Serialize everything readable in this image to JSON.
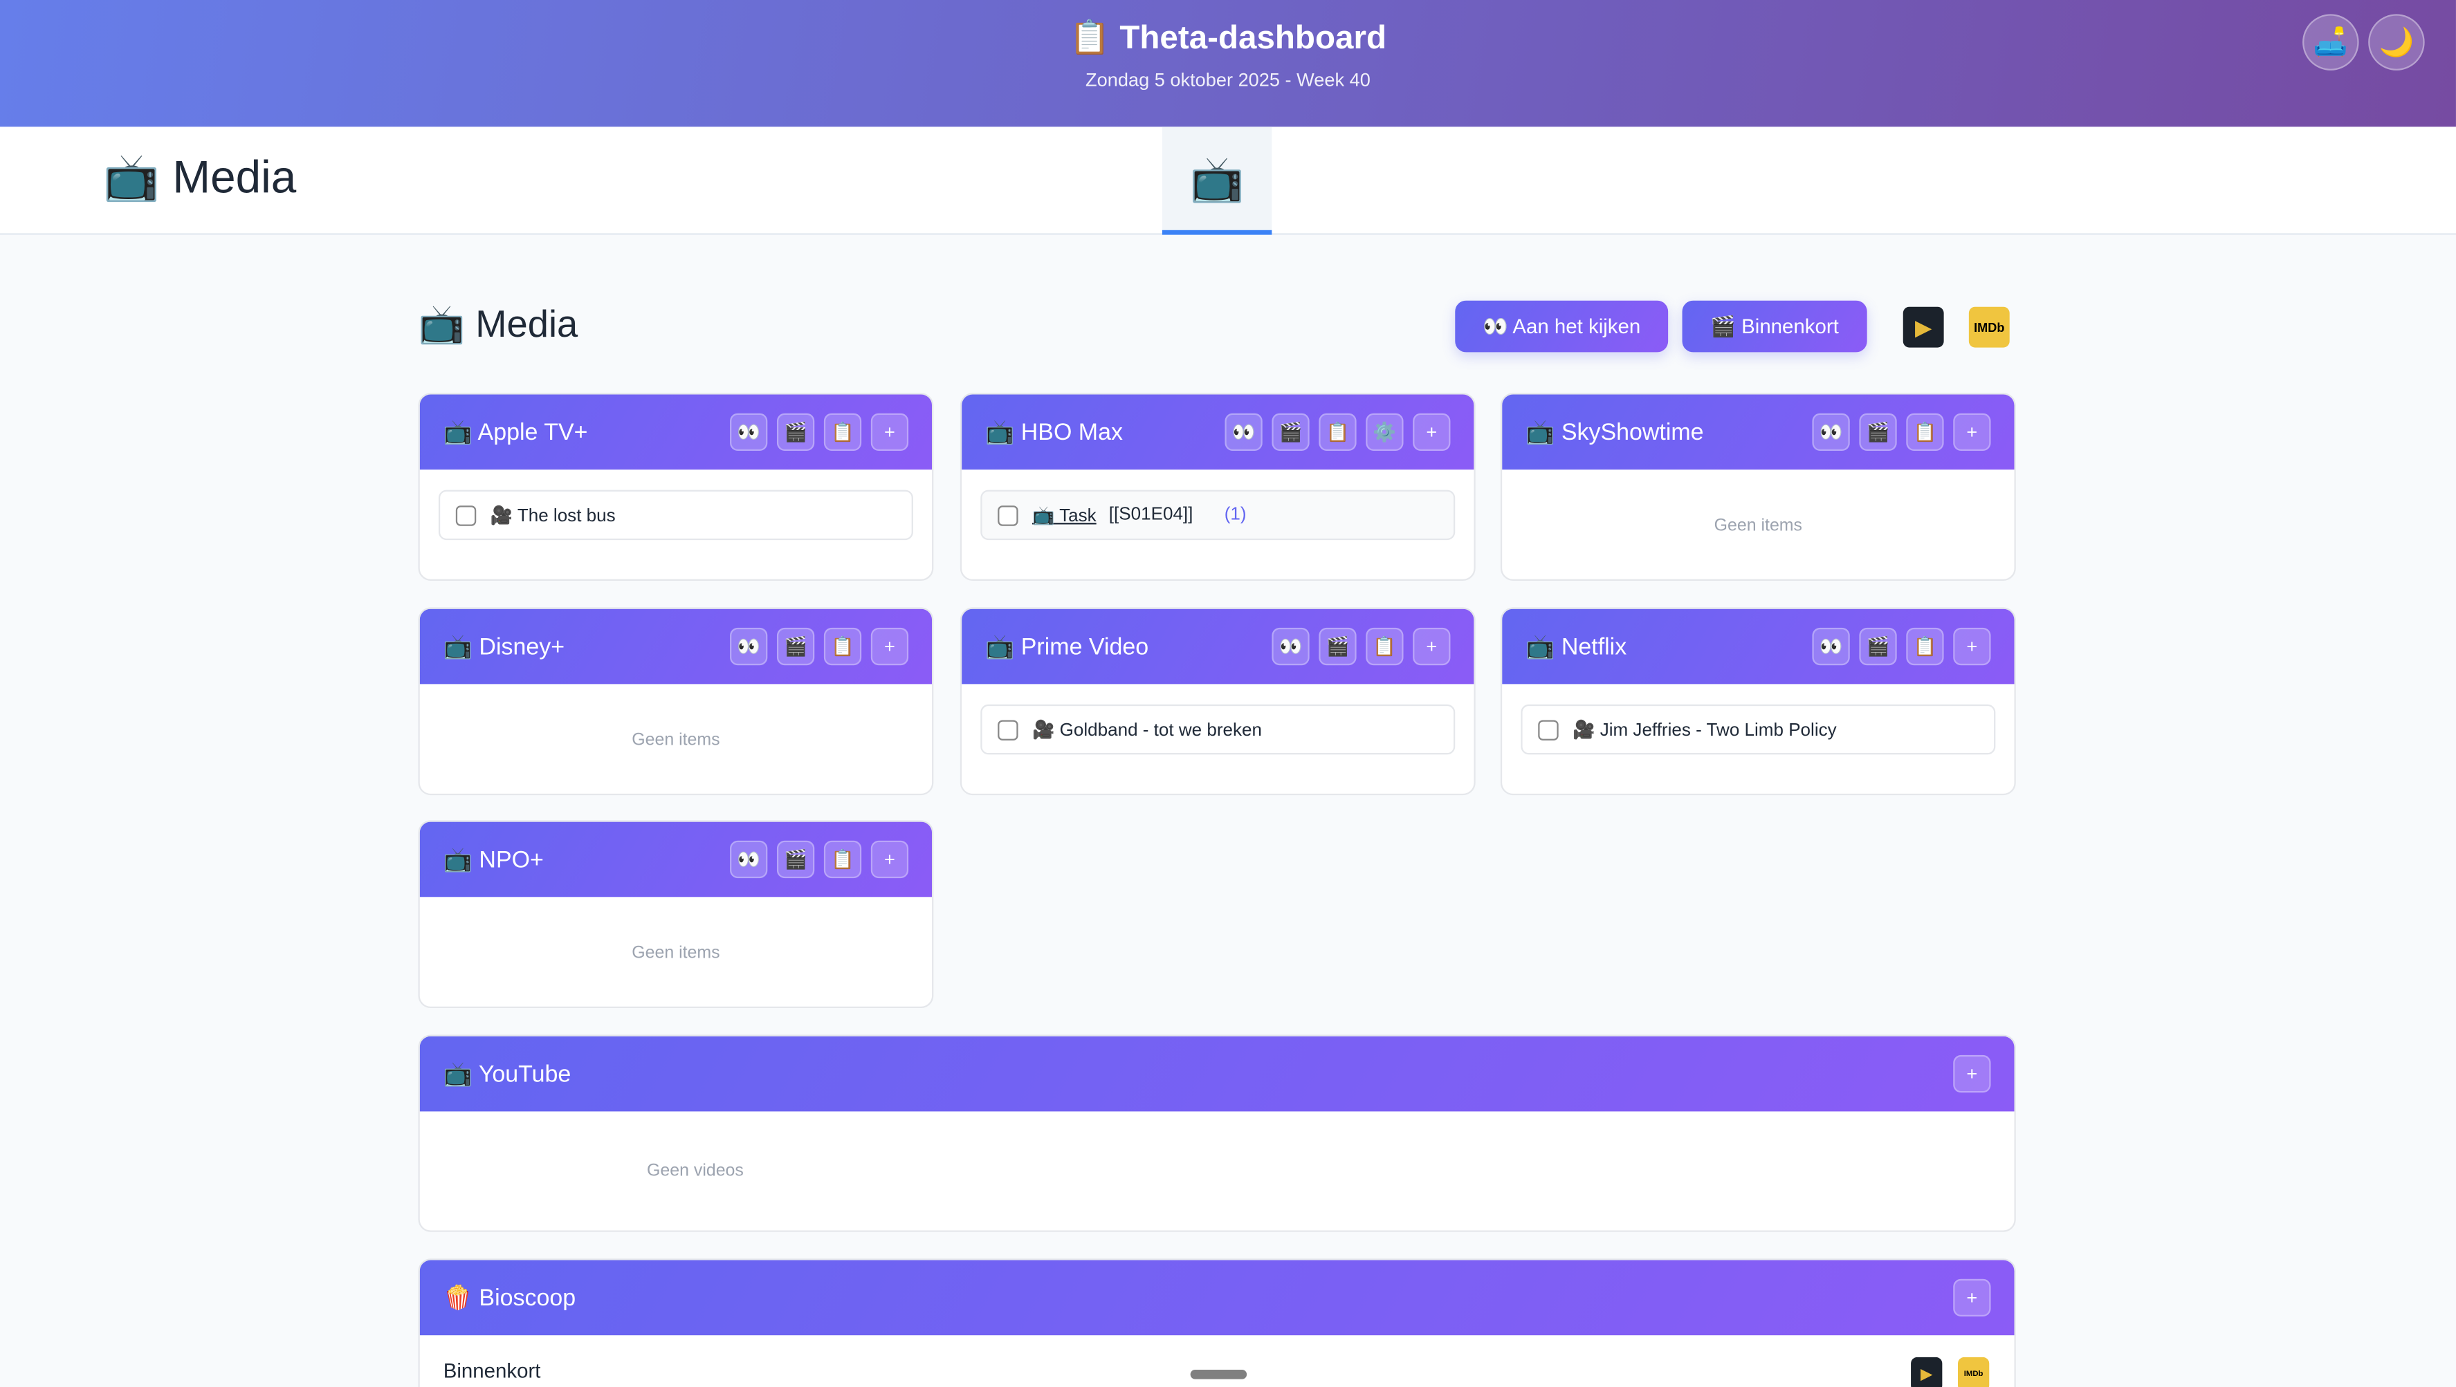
{
  "header": {
    "title": "📋 Theta-dashboard",
    "subtitle": "Zondag 5 oktober 2025 - Week 40",
    "lamp_icon": "🛋️",
    "moon_icon": "🌙"
  },
  "nav": {
    "title": "📺 Media",
    "active_tab": "📺"
  },
  "page": {
    "title": "📺 Media",
    "watching_label": "👀 Aan het kijken",
    "upcoming_label": "🎬 Binnenkort",
    "plex_label": "▶",
    "imdb_label": "IMDb"
  },
  "icons": {
    "watching": "👀",
    "upcoming": "🎬",
    "list": "📋",
    "settings": "⚙️",
    "add": "+"
  },
  "cards": [
    {
      "name": "📺 Apple TV+",
      "items": [
        {
          "text": "🎥 The lost bus"
        }
      ]
    },
    {
      "name": "📺 HBO Max",
      "items": [
        {
          "link": "📺 Task",
          "text": "[[S01E04]]",
          "count": "(1)"
        }
      ]
    },
    {
      "name": "📺 SkyShowtime",
      "empty": "Geen items"
    },
    {
      "name": "📺 Disney+",
      "empty": "Geen items"
    },
    {
      "name": "📺 Prime Video",
      "items": [
        {
          "text": "🎥 Goldband - tot we breken"
        }
      ]
    },
    {
      "name": "📺 Netflix",
      "items": [
        {
          "text": "🎥 Jim Jeffries - Two Limb Policy"
        }
      ]
    },
    {
      "name": "📺 NPO+",
      "empty": "Geen items"
    }
  ],
  "youtube": {
    "name": "📺 YouTube",
    "empty": "Geen videos"
  },
  "bioscoop": {
    "name": "🍿 Bioscoop",
    "section": "Binnenkort"
  }
}
